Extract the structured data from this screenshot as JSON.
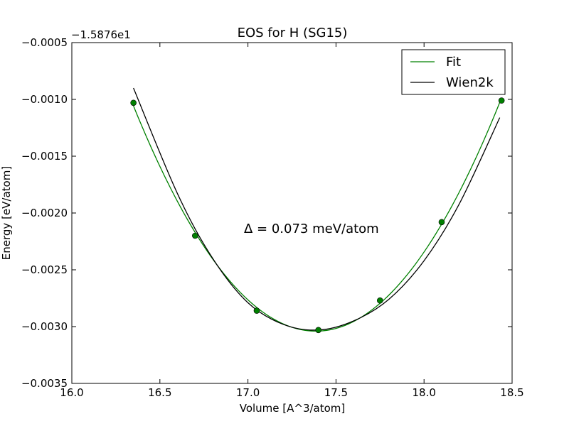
{
  "chart_data": {
    "type": "line",
    "title": "EOS for H (SG15)",
    "xlabel": "Volume [A^3/atom]",
    "ylabel": "Energy [eV/atom]",
    "y_offset_label": "−1.5876e1",
    "xlim": [
      16.0,
      18.5
    ],
    "ylim": [
      -0.0035,
      -0.0005
    ],
    "x_ticks": [
      16.0,
      16.5,
      17.0,
      17.5,
      18.0,
      18.5
    ],
    "x_tick_labels": [
      "16.0",
      "16.5",
      "17.0",
      "17.5",
      "18.0",
      "18.5"
    ],
    "y_ticks": [
      -0.0005,
      -0.001,
      -0.0015,
      -0.002,
      -0.0025,
      -0.003,
      -0.0035
    ],
    "y_tick_labels": [
      "−0.0005",
      "−0.0010",
      "−0.0015",
      "−0.0020",
      "−0.0025",
      "−0.0030",
      "−0.0035"
    ],
    "grid": false,
    "legend_position": "top-right",
    "series": [
      {
        "name": "Fit",
        "color": "#008000",
        "kind": "curve",
        "fit_through": "points"
      },
      {
        "name": "Wien2k",
        "color": "#000000",
        "kind": "curve",
        "x": [
          16.35,
          16.6,
          16.8,
          17.0,
          17.2,
          17.4,
          17.6,
          17.8,
          18.0,
          18.2,
          18.43
        ],
        "y": [
          -0.0009,
          -0.00183,
          -0.0024,
          -0.00279,
          -0.00298,
          -0.00303,
          -0.00295,
          -0.00276,
          -0.00242,
          -0.00192,
          -0.00116
        ]
      }
    ],
    "points": {
      "color": "#008000",
      "x": [
        16.35,
        16.7,
        17.05,
        17.4,
        17.75,
        18.1,
        18.44
      ],
      "y": [
        -0.00103,
        -0.0022,
        -0.00286,
        -0.00303,
        -0.00277,
        -0.00208,
        -0.00101
      ]
    },
    "annotation": "Δ = 0.073 meV/atom"
  }
}
